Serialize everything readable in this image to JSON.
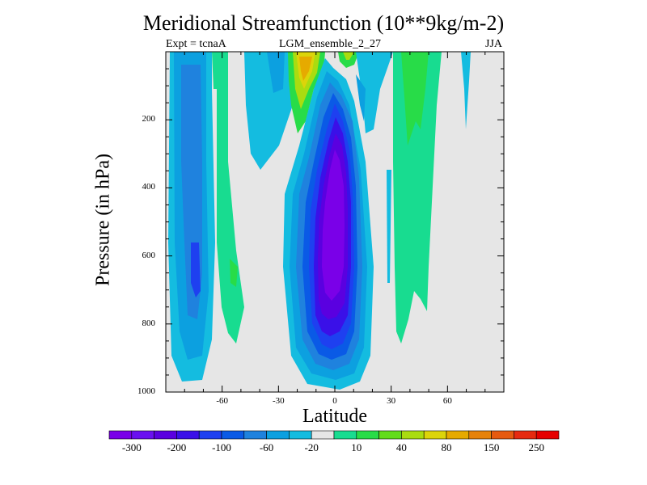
{
  "chart_data": {
    "type": "heatmap",
    "title": "Meridional Streamfunction (10**9kg/m-2)",
    "subtitle_left": "Expt = tcnaA",
    "subtitle_center": "LGM_ensemble_2_27",
    "subtitle_right": "JJA",
    "xlabel": "Latitude",
    "ylabel": "Pressure (in hPa)",
    "xlim": [
      -90,
      90
    ],
    "ylim": [
      1000,
      0
    ],
    "x_ticks": [
      -60,
      -30,
      0,
      30,
      60
    ],
    "x_tick_labels": [
      "-60",
      "-30",
      "0",
      "30",
      "60"
    ],
    "y_ticks": [
      200,
      400,
      600,
      800,
      1000
    ],
    "y_tick_labels": [
      "200",
      "400",
      "600",
      "800",
      "1000"
    ],
    "colorbar": {
      "labels": [
        "-300",
        "-200",
        "-100",
        "-60",
        "-20",
        "10",
        "40",
        "80",
        "150",
        "250"
      ],
      "colors": [
        "#7a00e8",
        "#6a10f0",
        "#5a00e0",
        "#3a10e8",
        "#1e40f0",
        "#0a5ae6",
        "#1f82de",
        "#0ca0e0",
        "#14bce0",
        "#e6e6e6",
        "#18dc90",
        "#28dc48",
        "#62dc1a",
        "#aadc10",
        "#dcd40a",
        "#e6aa00",
        "#e6820a",
        "#e65a10",
        "#e62a10",
        "#e60000"
      ]
    },
    "background_color": "#e6e6e6",
    "regions": [
      {
        "name": "central-negative-cell",
        "center_lat": 2,
        "center_p": 450,
        "half_width_lat": 22,
        "top_p": 60,
        "bottom_p": 985,
        "min_value": -300
      },
      {
        "name": "southern-negative-cell",
        "center_lat": -70,
        "center_p": 550,
        "half_width_lat": 15,
        "top_p": 0,
        "bottom_p": 970,
        "min_value": -100
      },
      {
        "name": "southern-positive-cell",
        "center_lat": -52,
        "center_p": 650,
        "half_width_lat": 8,
        "top_p": 300,
        "bottom_p": 850,
        "max_value": 40
      },
      {
        "name": "upper-positive-cell",
        "center_lat": -15,
        "center_p": 80,
        "half_width_lat": 7,
        "top_p": 0,
        "bottom_p": 200,
        "max_value": 150
      },
      {
        "name": "northern-positive-cell",
        "center_lat": 45,
        "center_p": 300,
        "half_width_lat": 8,
        "top_p": 0,
        "bottom_p": 840,
        "max_value": 40
      },
      {
        "name": "upper-negative-band",
        "center_lat": -35,
        "center_p": 120,
        "half_width_lat": 12,
        "top_p": 0,
        "bottom_p": 360,
        "min_value": -20
      }
    ]
  }
}
